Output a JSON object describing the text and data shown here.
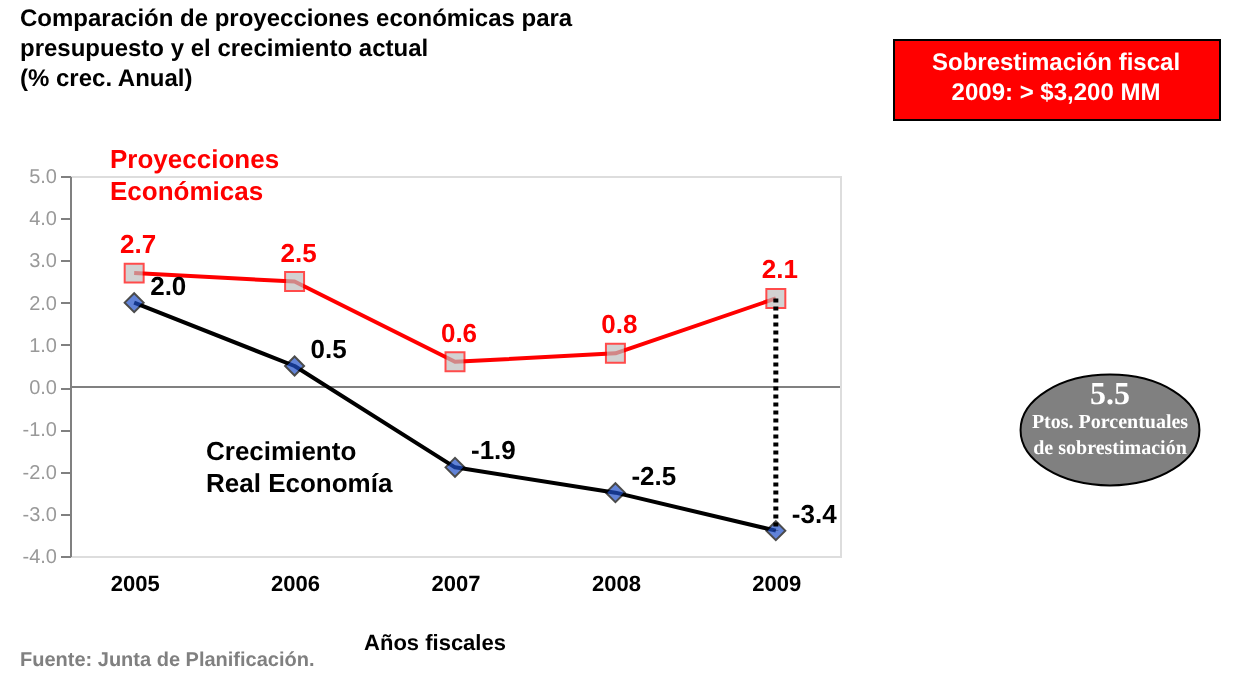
{
  "chart_data": {
    "type": "line",
    "title": "Comparación de proyecciones económicas para presupuesto y el crecimiento actual",
    "subtitle": "(% crec. Anual)",
    "xlabel": "Años fiscales",
    "x": [
      2005,
      2006,
      2007,
      2008,
      2009
    ],
    "xlim": [
      2004.6,
      2009.4
    ],
    "xticks": [
      2005,
      2006,
      2007,
      2008,
      2009
    ],
    "ylim": [
      -4,
      5
    ],
    "yticks": [
      {
        "value": -4,
        "label": "-4.0"
      },
      {
        "value": -3,
        "label": "-3.0"
      },
      {
        "value": -2,
        "label": "-2.0"
      },
      {
        "value": -1,
        "label": "-1.0"
      },
      {
        "value": 0,
        "label": "0.0"
      },
      {
        "value": 1,
        "label": "1.0"
      },
      {
        "value": 2,
        "label": "2.0"
      },
      {
        "value": 3,
        "label": "3.0"
      },
      {
        "value": 4,
        "label": "4.0"
      },
      {
        "value": 5,
        "label": "5.0"
      }
    ],
    "series": [
      {
        "name": "Proyecciones Económicas",
        "color": "#ff0000",
        "marker": "square",
        "values": [
          2.7,
          2.5,
          0.6,
          0.8,
          2.1
        ],
        "value_labels": [
          "2.7",
          "2.5",
          "0.6",
          "0.8",
          "2.1"
        ]
      },
      {
        "name": "Crecimiento Real Economía",
        "color": "#000000",
        "marker": "diamond",
        "values": [
          2.0,
          0.5,
          -1.9,
          -2.5,
          -3.4
        ],
        "value_labels": [
          "2.0",
          "0.5",
          "-1.9",
          "-2.5",
          "-3.4"
        ]
      },
      {
        "type": "line",
        "color": "#000000",
        "line_style": "dotted",
        "marker": "none",
        "x": [
          2009,
          2009
        ],
        "values": [
          2.1,
          -3.4
        ]
      }
    ],
    "ref_lines": [
      {
        "axis": "y",
        "value": 0,
        "color": "#808080"
      }
    ],
    "grid": false,
    "legend": false,
    "annotations": [
      "Sobrestimación fiscal 2009: > $3,200 MM",
      "5.5 Ptos. Porcentuales de sobrestimación",
      "Fuente: Junta de Planificación."
    ]
  }
}
